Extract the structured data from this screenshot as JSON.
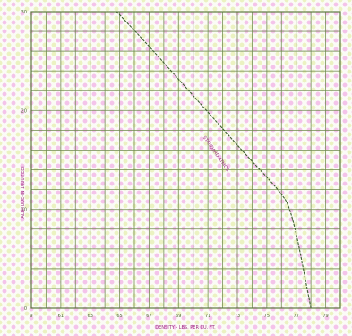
{
  "chart_data": {
    "type": "line",
    "title": "",
    "xlabel": "DENSITY - LBS. PER CU. FT.",
    "ylabel": "ALTITUDE-IN 1000 FEET",
    "xlim": [
      0.059,
      0.08
    ],
    "ylim": [
      0,
      30
    ],
    "xticks": [
      {
        "value": 0.059,
        "label": "9"
      },
      {
        "value": 0.061,
        "label": "61"
      },
      {
        "value": 0.063,
        "label": "63"
      },
      {
        "value": 0.065,
        "label": "65"
      },
      {
        "value": 0.067,
        "label": "67"
      },
      {
        "value": 0.069,
        "label": "69"
      },
      {
        "value": 0.071,
        "label": "71"
      },
      {
        "value": 0.073,
        "label": "73"
      },
      {
        "value": 0.075,
        "label": "75"
      },
      {
        "value": 0.077,
        "label": "77"
      },
      {
        "value": 0.079,
        "label": "79"
      }
    ],
    "yticks": [
      {
        "value": 0,
        "label": "0"
      },
      {
        "value": 10,
        "label": "10"
      },
      {
        "value": 20,
        "label": "20"
      },
      {
        "value": 30,
        "label": "30"
      }
    ],
    "grid": true,
    "x_grid_step": 0.001,
    "y_grid_step": 2,
    "series": [
      {
        "name": "",
        "x": [
          0.0648,
          0.0667,
          0.0685,
          0.0703,
          0.0721,
          0.0739,
          0.0758,
          0.0767,
          0.078
        ],
        "y": [
          30,
          27,
          24,
          21,
          18,
          15,
          12,
          10,
          0
        ]
      }
    ],
    "annotations": [
      {
        "text": "STANDARD ATMOS.",
        "x": 0.0715,
        "y": 15.5
      }
    ]
  },
  "colors": {
    "grid": "#6f8a4c",
    "curve": "#3d5f2e",
    "axis_text": "#9a2a7e",
    "tick_text": "#4f6a33",
    "dot_pink": "#ee96e1",
    "dot_yellow": "#deec96"
  }
}
